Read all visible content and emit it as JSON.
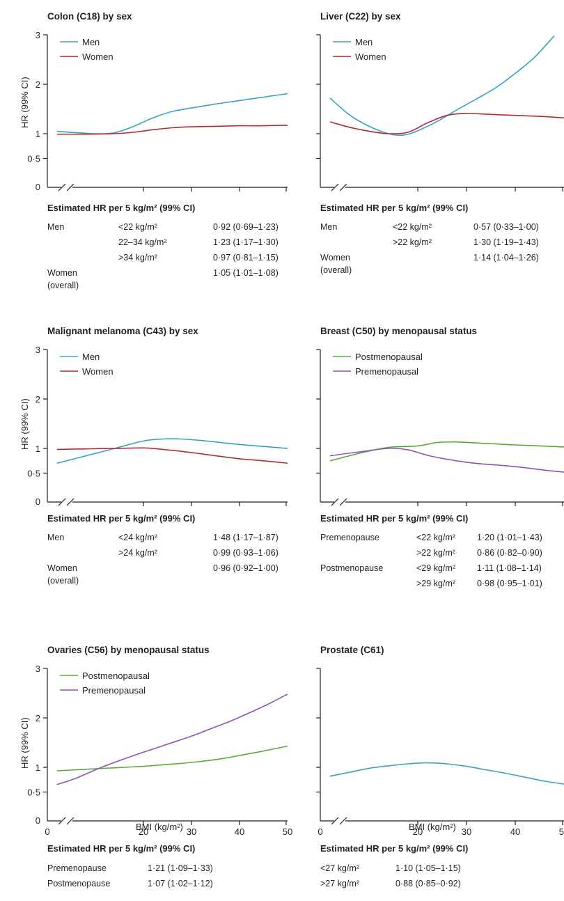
{
  "y_axis_label": "HR (99% CI)",
  "x_axis_label": "BMI (kg/m²)",
  "table_title": "Estimated HR per 5 kg/m² (99% CI)",
  "colors": {
    "blue": "#3aa0c0",
    "red": "#b22a35",
    "green": "#59a83a",
    "purple": "#8a55b0"
  },
  "panels": [
    {
      "title": "Colon (C18) by sex",
      "chart_data": {
        "type": "line",
        "xlim": [
          0,
          50
        ],
        "ylim": [
          0,
          3
        ],
        "yticks": [
          "0",
          "0·5",
          "1",
          "2",
          "3"
        ],
        "xticks": [
          "0",
          "20",
          "30",
          "40",
          "50"
        ],
        "series": [
          {
            "name": "Men",
            "color": "#3aa0c0",
            "x": [
              2,
              6,
              10,
              14,
              18,
              22,
              26,
              30,
              35,
              40,
              45,
              50
            ],
            "y": [
              1.05,
              1.02,
              1.0,
              1.02,
              1.15,
              1.32,
              1.45,
              1.52,
              1.6,
              1.67,
              1.74,
              1.81
            ]
          },
          {
            "name": "Women",
            "color": "#b22a35",
            "x": [
              2,
              8,
              14,
              18,
              22,
              26,
              30,
              35,
              40,
              45,
              50
            ],
            "y": [
              0.99,
              0.99,
              1.0,
              1.03,
              1.08,
              1.12,
              1.14,
              1.15,
              1.16,
              1.16,
              1.17
            ]
          }
        ]
      },
      "rows": [
        [
          "Men",
          "<22 kg/m²",
          "0·92 (0·69–1·23)"
        ],
        [
          "",
          "22–34 kg/m²",
          "1·23 (1·17–1·30)"
        ],
        [
          "",
          ">34 kg/m²",
          "0·97 (0·81–1·15)"
        ],
        [
          "Women",
          "",
          "1·05 (1·01–1·08)"
        ],
        [
          "(overall)",
          "",
          ""
        ]
      ]
    },
    {
      "title": "Liver (C22) by sex",
      "chart_data": {
        "type": "line",
        "xlim": [
          0,
          50
        ],
        "ylim": [
          0,
          3
        ],
        "series": [
          {
            "name": "Men",
            "color": "#3aa0c0",
            "x": [
              2,
              6,
              10,
              14,
              17,
              20,
              24,
              28,
              32,
              36,
              40,
              44,
              48
            ],
            "y": [
              1.72,
              1.38,
              1.15,
              1.0,
              0.97,
              1.06,
              1.25,
              1.48,
              1.7,
              1.93,
              2.22,
              2.55,
              2.98
            ]
          },
          {
            "name": "Women",
            "color": "#b22a35",
            "x": [
              2,
              6,
              10,
              14,
              18,
              22,
              26,
              30,
              35,
              40,
              45,
              50
            ],
            "y": [
              1.24,
              1.13,
              1.05,
              1.0,
              1.03,
              1.22,
              1.37,
              1.41,
              1.39,
              1.37,
              1.35,
              1.32
            ]
          }
        ]
      },
      "rows": [
        [
          "Men",
          "<22 kg/m²",
          "0·57 (0·33–1·00)"
        ],
        [
          "",
          ">22 kg/m²",
          "1·30 (1·19–1·43)"
        ],
        [
          "Women",
          "",
          "1·14 (1·04–1·26)"
        ],
        [
          "(overall)",
          "",
          ""
        ]
      ]
    },
    {
      "title": "Malignant melanoma (C43) by sex",
      "chart_data": {
        "type": "line",
        "xlim": [
          0,
          50
        ],
        "ylim": [
          0,
          3
        ],
        "series": [
          {
            "name": "Men",
            "color": "#3aa0c0",
            "x": [
              2,
              8,
              14,
              20,
              24,
              28,
              32,
              36,
              40,
              45,
              50
            ],
            "y": [
              0.7,
              0.85,
              1.0,
              1.15,
              1.19,
              1.19,
              1.16,
              1.12,
              1.08,
              1.04,
              1.0
            ]
          },
          {
            "name": "Women",
            "color": "#b22a35",
            "x": [
              2,
              8,
              14,
              20,
              24,
              28,
              32,
              36,
              40,
              45,
              50
            ],
            "y": [
              0.98,
              0.99,
              1.0,
              1.01,
              0.98,
              0.94,
              0.89,
              0.84,
              0.79,
              0.75,
              0.7
            ]
          }
        ]
      },
      "rows": [
        [
          "Men",
          "<24 kg/m²",
          "1·48 (1·17–1·87)"
        ],
        [
          "",
          ">24 kg/m²",
          "0·99 (0·93–1·06)"
        ],
        [
          "Women",
          "",
          "0·96 (0·92–1·00)"
        ],
        [
          "(overall)",
          "",
          ""
        ]
      ]
    },
    {
      "title": "Breast (C50) by menopausal status",
      "chart_data": {
        "type": "line",
        "xlim": [
          0,
          50
        ],
        "ylim": [
          0,
          3
        ],
        "series": [
          {
            "name": "Postmenopausal",
            "color": "#59a83a",
            "x": [
              2,
              8,
              14,
              20,
              24,
              28,
              32,
              36,
              40,
              45,
              50
            ],
            "y": [
              0.75,
              0.9,
              1.02,
              1.05,
              1.12,
              1.13,
              1.11,
              1.09,
              1.07,
              1.05,
              1.03
            ]
          },
          {
            "name": "Premenopausal",
            "color": "#8a55b0",
            "x": [
              2,
              8,
              14,
              18,
              22,
              26,
              30,
              34,
              38,
              42,
              46,
              50
            ],
            "y": [
              0.85,
              0.93,
              1.0,
              0.97,
              0.86,
              0.78,
              0.72,
              0.68,
              0.65,
              0.61,
              0.56,
              0.52
            ]
          }
        ]
      },
      "rows": [
        [
          "Premenopause",
          "<22 kg/m²",
          "1·20 (1·01–1·43)"
        ],
        [
          "",
          ">22 kg/m²",
          "0·86 (0·82–0·90)"
        ],
        [
          "Postmenopause",
          "<29 kg/m²",
          "1·11 (1·08–1·14)"
        ],
        [
          "",
          ">29 kg/m²",
          "0·98 (0·95–1·01)"
        ]
      ]
    },
    {
      "title": "Ovaries (C56) by menopausal status",
      "chart_data": {
        "type": "line",
        "xlim": [
          0,
          50
        ],
        "ylim": [
          0,
          3
        ],
        "series": [
          {
            "name": "Postmenopausal",
            "color": "#59a83a",
            "x": [
              2,
              8,
              14,
              20,
              24,
              28,
              32,
              36,
              40,
              45,
              50
            ],
            "y": [
              0.93,
              0.96,
              0.99,
              1.02,
              1.05,
              1.08,
              1.12,
              1.17,
              1.24,
              1.33,
              1.43
            ]
          },
          {
            "name": "Premenopausal",
            "color": "#8a55b0",
            "x": [
              2,
              6,
              10,
              14,
              18,
              22,
              26,
              30,
              34,
              38,
              42,
              46,
              50
            ],
            "y": [
              0.65,
              0.78,
              0.95,
              1.1,
              1.24,
              1.37,
              1.5,
              1.63,
              1.78,
              1.93,
              2.1,
              2.28,
              2.48
            ]
          }
        ]
      },
      "rows": [
        [
          "Premenopause",
          "1·21 (1·09–1·33)",
          ""
        ],
        [
          "Postmenopause",
          "1·07 (1·02–1·12)",
          ""
        ]
      ]
    },
    {
      "title": "Prostate (C61)",
      "chart_data": {
        "type": "line",
        "xlim": [
          0,
          50
        ],
        "ylim": [
          0,
          3
        ],
        "series": [
          {
            "name": "",
            "color": "#3aa0c0",
            "x": [
              2,
              6,
              10,
              14,
              18,
              22,
              26,
              30,
              34,
              38,
              42,
              46,
              50
            ],
            "y": [
              0.82,
              0.9,
              0.98,
              1.03,
              1.07,
              1.09,
              1.07,
              1.02,
              0.95,
              0.88,
              0.8,
              0.72,
              0.66
            ]
          }
        ]
      },
      "rows": [
        [
          "<27 kg/m²",
          "1·10 (1·05–1·15)",
          ""
        ],
        [
          ">27 kg/m²",
          "0·88 (0·85–0·92)",
          ""
        ]
      ]
    }
  ]
}
